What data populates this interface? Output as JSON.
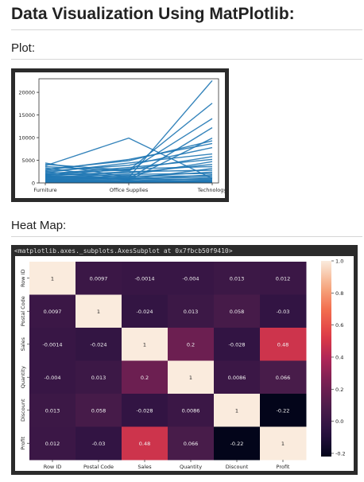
{
  "page": {
    "title": "Data Visualization Using MatPlotlib:",
    "plot_heading": "Plot:",
    "heatmap_heading": "Heat Map:",
    "axes_output": "<matplotlib.axes._subplots.AxesSubplot at 0x7fbcb50f9410>"
  },
  "chart_data": [
    {
      "type": "line",
      "categories": [
        "Furniture",
        "Office Supplies",
        "Technology"
      ],
      "ylim": [
        0,
        23000
      ],
      "yticks": [
        0,
        5000,
        10000,
        15000,
        20000
      ],
      "color": "#1f77b4",
      "series": [
        {
          "values": [
            4400,
            1200,
            22600
          ]
        },
        {
          "values": [
            4100,
            2800,
            17600
          ]
        },
        {
          "values": [
            3800,
            9900,
            1000
          ]
        },
        {
          "values": [
            3600,
            2600,
            14200
          ]
        },
        {
          "values": [
            3300,
            900,
            12200
          ]
        },
        {
          "values": [
            3000,
            4900,
            9300
          ]
        },
        {
          "values": [
            2800,
            5200,
            8700
          ]
        },
        {
          "values": [
            2600,
            3900,
            7800
          ]
        },
        {
          "values": [
            2500,
            600,
            9900
          ]
        },
        {
          "values": [
            2300,
            4400,
            6400
          ]
        },
        {
          "values": [
            2100,
            2900,
            5800
          ]
        },
        {
          "values": [
            2000,
            3400,
            5200
          ]
        },
        {
          "values": [
            1900,
            1700,
            4700
          ]
        },
        {
          "values": [
            1800,
            2200,
            4100
          ]
        },
        {
          "values": [
            1700,
            3100,
            3600
          ]
        },
        {
          "values": [
            1600,
            800,
            3200
          ]
        },
        {
          "values": [
            1500,
            2500,
            2800
          ]
        },
        {
          "values": [
            1400,
            1300,
            2400
          ]
        },
        {
          "values": [
            1300,
            1900,
            2100
          ]
        },
        {
          "values": [
            1200,
            700,
            1800
          ]
        },
        {
          "values": [
            1100,
            1500,
            1500
          ]
        },
        {
          "values": [
            1000,
            1100,
            1200
          ]
        },
        {
          "values": [
            900,
            500,
            1000
          ]
        },
        {
          "values": [
            800,
            900,
            800
          ]
        },
        {
          "values": [
            700,
            400,
            600
          ]
        },
        {
          "values": [
            600,
            300,
            500
          ]
        },
        {
          "values": [
            500,
            200,
            400
          ]
        },
        {
          "values": [
            400,
            150,
            300
          ]
        },
        {
          "values": [
            300,
            100,
            200
          ]
        },
        {
          "values": [
            200,
            80,
            150
          ]
        },
        {
          "values": [
            100,
            50,
            100
          ]
        },
        {
          "values": [
            50,
            20,
            50
          ]
        }
      ]
    },
    {
      "type": "heatmap",
      "rows": [
        "Row ID",
        "Postal Code",
        "Sales",
        "Quantity",
        "Discount",
        "Profit"
      ],
      "cols": [
        "Row ID",
        "Postal Code",
        "Sales",
        "Quantity",
        "Discount",
        "Profit"
      ],
      "values": [
        [
          1,
          0.0097,
          -0.0014,
          -0.004,
          0.013,
          0.012
        ],
        [
          0.0097,
          1,
          -0.024,
          0.013,
          0.058,
          -0.03
        ],
        [
          -0.0014,
          -0.024,
          1,
          0.2,
          -0.028,
          0.48
        ],
        [
          -0.004,
          0.013,
          0.2,
          1,
          0.0086,
          0.066
        ],
        [
          0.013,
          0.058,
          -0.028,
          0.0086,
          1,
          -0.22
        ],
        [
          0.012,
          -0.03,
          0.48,
          0.066,
          -0.22,
          1
        ]
      ],
      "labels": [
        [
          "1",
          "0.0097",
          "-0.0014",
          "-0.004",
          "0.013",
          "0.012"
        ],
        [
          "0.0097",
          "1",
          "-0.024",
          "0.013",
          "0.058",
          "-0.03"
        ],
        [
          "-0.0014",
          "-0.024",
          "1",
          "0.2",
          "-0.028",
          "0.48"
        ],
        [
          "-0.004",
          "0.013",
          "0.2",
          "1",
          "0.0086",
          "0.066"
        ],
        [
          "0.013",
          "0.058",
          "-0.028",
          "0.0086",
          "1",
          "-0.22"
        ],
        [
          "0.012",
          "-0.03",
          "0.48",
          "0.066",
          "-0.22",
          "1"
        ]
      ],
      "vmin": -0.22,
      "vmax": 1.0,
      "colorbar_ticks": [
        1.0,
        0.8,
        0.6,
        0.4,
        0.2,
        0.0,
        -0.2
      ],
      "colorbar_labels": [
        "1.0",
        "0.8",
        "0.6",
        "0.4",
        "0.2",
        "0.0",
        "-0.2"
      ],
      "colormap": "rocket"
    }
  ]
}
